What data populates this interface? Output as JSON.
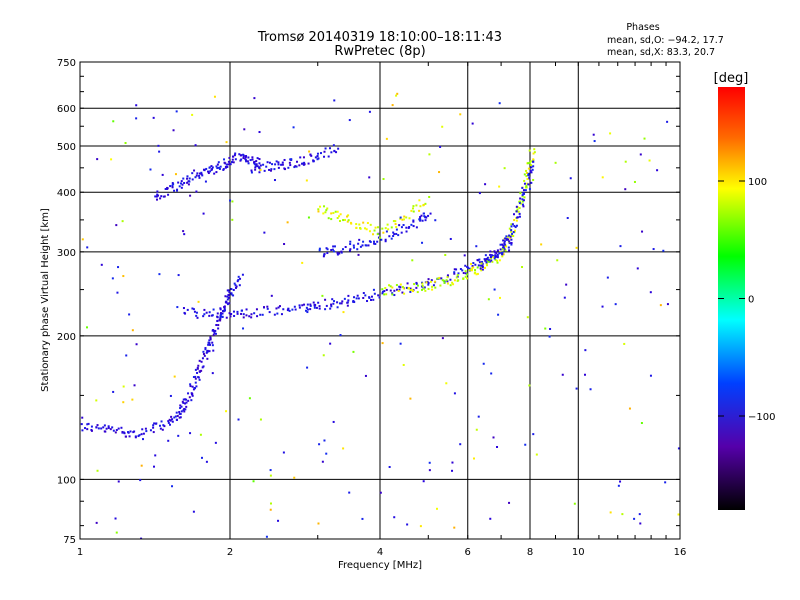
{
  "title": "Tromsø 20140319 18:10:00–18:11:43",
  "subtitle": "RwPretec (8p)",
  "stats": {
    "heading": "Phases",
    "line_o": "mean, sd,O: −94.2, 17.7",
    "line_x": "mean, sd,X:  83.3, 20.7"
  },
  "colorbar": {
    "label": "[deg]",
    "ticks": [
      "100",
      "0",
      "−100"
    ],
    "tick_values": [
      100,
      0,
      -100
    ],
    "range": [
      -180,
      180
    ]
  },
  "chart_data": {
    "type": "scatter",
    "title": "Tromsø 20140319 18:10:00–18:11:43",
    "subtitle": "RwPretec (8p)",
    "xlabel": "Frequency [MHz]",
    "ylabel": "Stationary phase Virtual Height [km]",
    "xscale": "log",
    "yscale": "log",
    "xlim": [
      1,
      16
    ],
    "ylim": [
      75,
      750
    ],
    "x_ticks": [
      1,
      2,
      4,
      6,
      8,
      10,
      16
    ],
    "x_tick_labels": [
      "1",
      "2",
      "4",
      "6",
      "8",
      "10",
      "16"
    ],
    "y_ticks": [
      75,
      100,
      200,
      300,
      400,
      500,
      600,
      750
    ],
    "y_tick_labels": [
      "75",
      "100",
      "200",
      "300",
      "400",
      "500",
      "600",
      "750"
    ],
    "grid": true,
    "color_by": "phase [deg]",
    "series": [
      {
        "traces": [
          {
            "x": [
              1.0,
              1.1,
              1.2,
              1.3,
              1.45,
              1.55,
              1.6,
              1.65,
              1.7,
              1.75,
              1.8,
              1.85,
              1.9,
              1.95,
              2.0,
              2.1
            ],
            "y": [
              130,
              128,
              127,
              125,
              130,
              135,
              142,
              150,
              162,
              175,
              190,
              205,
              220,
              235,
              250,
              268
            ],
            "phase": -115
          },
          {
            "x": [
              1.6,
              1.8,
              2.0,
              2.2,
              2.5,
              2.8,
              3.0,
              3.3,
              3.6,
              4.0,
              4.5,
              5.0,
              5.5,
              6.0,
              6.5,
              7.0,
              7.3
            ],
            "y": [
              225,
              223,
              223,
              224,
              227,
              230,
              233,
              236,
              240,
              246,
              253,
              260,
              268,
              277,
              290,
              305,
              315
            ],
            "phase": -110
          },
          {
            "x": [
              3.0,
              3.3,
              3.6,
              4.0,
              4.4,
              4.8,
              5.0
            ],
            "y": [
              300,
              305,
              312,
              322,
              335,
              350,
              360
            ],
            "phase": -105
          },
          {
            "x": [
              4.0,
              4.5,
              5.0,
              5.5,
              6.0,
              6.5,
              7.0,
              7.3,
              7.6,
              7.9,
              8.1
            ],
            "y": [
              250,
              252,
              256,
              262,
              270,
              282,
              300,
              330,
              380,
              440,
              500
            ],
            "phase": 85
          },
          {
            "x": [
              6.3,
              6.7,
              7.0,
              7.3,
              7.6,
              7.9,
              8.1
            ],
            "y": [
              280,
              292,
              305,
              330,
              370,
              420,
              470
            ],
            "phase": -108
          },
          {
            "x": [
              1.4,
              1.5,
              1.6,
              1.7,
              1.8,
              1.9,
              2.0,
              2.1,
              2.2,
              2.3
            ],
            "y": [
              390,
              405,
              420,
              440,
              445,
              455,
              470,
              480,
              470,
              460
            ],
            "phase": -112
          },
          {
            "x": [
              2.2,
              2.4,
              2.6,
              2.8,
              3.0,
              3.3
            ],
            "y": [
              450,
              455,
              460,
              470,
              480,
              500
            ],
            "phase": -112
          },
          {
            "x": [
              3.0,
              3.3,
              3.6,
              4.0,
              4.5,
              5.0
            ],
            "y": [
              370,
              355,
              345,
              330,
              360,
              390
            ],
            "phase": 90
          }
        ]
      }
    ]
  }
}
